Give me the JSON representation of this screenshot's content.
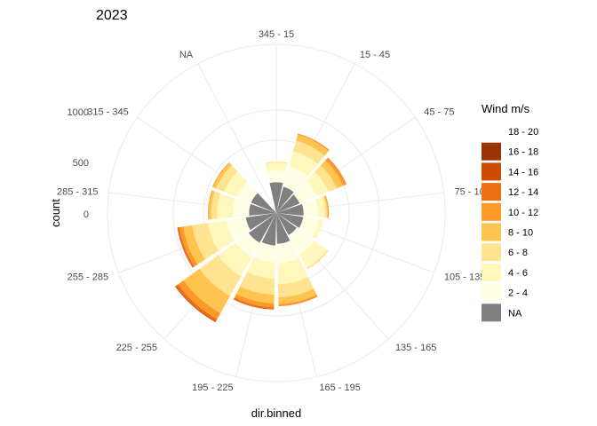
{
  "chart_data": {
    "type": "polar-stacked-bar",
    "title": "2023",
    "xlabel": "dir.binned",
    "ylabel": "count",
    "radial_ticks": [
      "0",
      "500",
      "1000"
    ],
    "radial_tick_values": [
      0,
      500,
      1000
    ],
    "directions": [
      "345 - 15",
      "15 - 45",
      "45 - 75",
      "75 - 105",
      "105 - 135",
      "135 - 165",
      "165 - 195",
      "195 - 225",
      "225 - 255",
      "255 - 285",
      "285 - 315",
      "315 - 345",
      "NA"
    ],
    "legend": {
      "title": "Wind m/s",
      "position": "right",
      "entries": [
        {
          "label": "18 - 20",
          "color": "#ffffff"
        },
        {
          "label": "16 - 18",
          "color": "#993404"
        },
        {
          "label": "14 - 16",
          "color": "#cc4c02"
        },
        {
          "label": "12 - 14",
          "color": "#ec7014"
        },
        {
          "label": "10 - 12",
          "color": "#fe9929"
        },
        {
          "label": "8 - 10",
          "color": "#fec44f"
        },
        {
          "label": "6 - 8",
          "color": "#fee391"
        },
        {
          "label": "4 - 6",
          "color": "#fff7bc"
        },
        {
          "label": "2 - 4",
          "color": "#ffffe5"
        },
        {
          "label": "NA",
          "color": "#808080"
        }
      ]
    },
    "series_order_inner_to_outer": [
      "NA",
      "2 - 4",
      "4 - 6",
      "6 - 8",
      "8 - 10",
      "10 - 12",
      "12 - 14",
      "14 - 16",
      "16 - 18"
    ],
    "series": [
      {
        "name": "NA",
        "values": [
          90,
          70,
          60,
          70,
          70,
          60,
          90,
          100,
          110,
          90,
          70,
          70,
          0
        ]
      },
      {
        "name": "2 - 4",
        "values": [
          80,
          150,
          120,
          90,
          100,
          150,
          150,
          130,
          130,
          150,
          110,
          100,
          0
        ]
      },
      {
        "name": "4 - 6",
        "values": [
          70,
          170,
          120,
          60,
          40,
          160,
          240,
          180,
          250,
          210,
          150,
          130,
          0
        ]
      },
      {
        "name": "6 - 8",
        "values": [
          10,
          140,
          100,
          20,
          0,
          20,
          190,
          220,
          360,
          230,
          70,
          100,
          0
        ]
      },
      {
        "name": "8 - 10",
        "values": [
          0,
          90,
          90,
          10,
          0,
          0,
          110,
          140,
          390,
          150,
          30,
          40,
          0
        ]
      },
      {
        "name": "10 - 12",
        "values": [
          0,
          20,
          40,
          10,
          0,
          0,
          30,
          70,
          150,
          70,
          10,
          10,
          0
        ]
      },
      {
        "name": "12 - 14",
        "values": [
          0,
          0,
          10,
          0,
          0,
          0,
          10,
          30,
          60,
          30,
          0,
          0,
          0
        ]
      },
      {
        "name": "14 - 16",
        "values": [
          0,
          0,
          0,
          0,
          0,
          0,
          0,
          10,
          20,
          10,
          0,
          0,
          0
        ]
      },
      {
        "name": "16 - 18",
        "values": [
          0,
          0,
          0,
          0,
          0,
          0,
          0,
          0,
          5,
          0,
          0,
          0,
          0
        ]
      }
    ],
    "grid": true
  }
}
